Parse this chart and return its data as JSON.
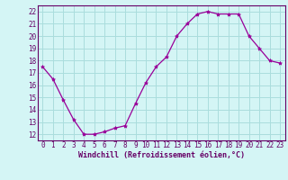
{
  "x": [
    0,
    1,
    2,
    3,
    4,
    5,
    6,
    7,
    8,
    9,
    10,
    11,
    12,
    13,
    14,
    15,
    16,
    17,
    18,
    19,
    20,
    21,
    22,
    23
  ],
  "y": [
    17.5,
    16.5,
    14.8,
    13.2,
    12.0,
    12.0,
    12.2,
    12.5,
    12.7,
    14.5,
    16.2,
    17.5,
    18.3,
    20.0,
    21.0,
    21.8,
    22.0,
    21.8,
    21.8,
    21.8,
    20.0,
    19.0,
    18.0,
    17.8
  ],
  "line_color": "#990099",
  "marker": "*",
  "marker_size": 3,
  "bg_color": "#d4f5f5",
  "grid_color": "#aadddd",
  "xlabel": "Windchill (Refroidissement éolien,°C)",
  "yticks": [
    12,
    13,
    14,
    15,
    16,
    17,
    18,
    19,
    20,
    21,
    22
  ],
  "xlim": [
    -0.5,
    23.5
  ],
  "ylim": [
    11.5,
    22.5
  ],
  "xlabel_fontsize": 6.0,
  "tick_fontsize": 5.5,
  "axis_label_color": "#660066",
  "tick_color": "#660066",
  "line_width": 0.9
}
